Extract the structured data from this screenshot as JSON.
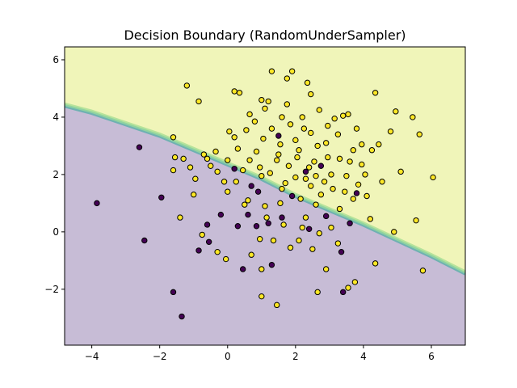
{
  "chart_data": {
    "type": "scatter",
    "title": "Decision Boundary (RandomUnderSampler)",
    "xlabel": "",
    "ylabel": "",
    "xlim": [
      -4.8,
      7.0
    ],
    "ylim": [
      -3.95,
      6.45
    ],
    "x_ticks": [
      -4,
      -2,
      0,
      2,
      4,
      6
    ],
    "x_tick_labels": [
      "−4",
      "−2",
      "0",
      "2",
      "4",
      "6"
    ],
    "y_ticks": [
      -2,
      0,
      2,
      4,
      6
    ],
    "y_tick_labels": [
      "−2",
      "0",
      "2",
      "4",
      "6"
    ],
    "grid": false,
    "legend": "none",
    "background_regions": {
      "class_0_color": "#c7bcd6",
      "class_1_color": "#f0f5b9",
      "boundary_band_colors": [
        "#6fb1b2",
        "#8fd3a0",
        "#b6e39b"
      ],
      "boundary": [
        [
          -4.8,
          4.4
        ],
        [
          -4.0,
          4.15
        ],
        [
          -3.0,
          3.75
        ],
        [
          -2.0,
          3.35
        ],
        [
          -1.0,
          2.85
        ],
        [
          0.0,
          2.35
        ],
        [
          1.0,
          1.85
        ],
        [
          2.0,
          1.25
        ],
        [
          3.0,
          0.75
        ],
        [
          4.0,
          0.25
        ],
        [
          5.0,
          -0.3
        ],
        [
          6.0,
          -0.85
        ],
        [
          7.0,
          -1.45
        ]
      ]
    },
    "series": [
      {
        "class": 0,
        "color": "#440154",
        "points": [
          [
            -3.85,
            1.0
          ],
          [
            -2.6,
            2.95
          ],
          [
            -2.45,
            -0.3
          ],
          [
            -1.95,
            1.2
          ],
          [
            -1.6,
            -2.1
          ],
          [
            -1.35,
            -2.95
          ],
          [
            -0.85,
            -0.65
          ],
          [
            -0.6,
            0.25
          ],
          [
            -0.55,
            -0.35
          ],
          [
            -0.2,
            0.6
          ],
          [
            0.2,
            2.2
          ],
          [
            0.3,
            0.2
          ],
          [
            0.45,
            -1.3
          ],
          [
            0.6,
            0.6
          ],
          [
            0.7,
            1.6
          ],
          [
            0.9,
            1.4
          ],
          [
            0.85,
            0.2
          ],
          [
            1.2,
            0.3
          ],
          [
            1.3,
            -1.15
          ],
          [
            1.5,
            3.35
          ],
          [
            1.6,
            0.5
          ],
          [
            1.9,
            1.25
          ],
          [
            2.3,
            2.1
          ],
          [
            2.4,
            0.1
          ],
          [
            2.75,
            2.3
          ],
          [
            2.9,
            0.55
          ],
          [
            3.4,
            -2.1
          ],
          [
            3.35,
            -0.7
          ],
          [
            3.6,
            0.3
          ],
          [
            3.8,
            1.35
          ]
        ]
      },
      {
        "class": 1,
        "color": "#fde725",
        "points": [
          [
            -1.2,
            5.1
          ],
          [
            -0.85,
            4.55
          ],
          [
            -1.6,
            3.3
          ],
          [
            -1.55,
            2.6
          ],
          [
            -1.6,
            2.15
          ],
          [
            -1.3,
            2.55
          ],
          [
            -1.1,
            2.25
          ],
          [
            -0.95,
            1.85
          ],
          [
            -0.7,
            2.7
          ],
          [
            -0.6,
            2.55
          ],
          [
            -0.35,
            2.8
          ],
          [
            -0.3,
            2.1
          ],
          [
            -0.1,
            1.75
          ],
          [
            0.0,
            1.4
          ],
          [
            0.05,
            3.5
          ],
          [
            0.2,
            3.3
          ],
          [
            0.3,
            2.9
          ],
          [
            0.35,
            4.85
          ],
          [
            0.55,
            3.55
          ],
          [
            0.65,
            2.5
          ],
          [
            0.8,
            3.85
          ],
          [
            0.85,
            2.8
          ],
          [
            1.0,
            1.95
          ],
          [
            1.05,
            3.25
          ],
          [
            1.1,
            4.3
          ],
          [
            1.2,
            4.55
          ],
          [
            1.3,
            3.6
          ],
          [
            1.45,
            2.5
          ],
          [
            1.6,
            4.0
          ],
          [
            1.75,
            4.45
          ],
          [
            1.85,
            3.75
          ],
          [
            2.0,
            3.2
          ],
          [
            2.05,
            2.6
          ],
          [
            2.2,
            4.0
          ],
          [
            2.3,
            1.85
          ],
          [
            2.45,
            3.45
          ],
          [
            2.55,
            2.45
          ],
          [
            2.7,
            4.25
          ],
          [
            2.75,
            1.3
          ],
          [
            2.9,
            3.1
          ],
          [
            3.05,
            2.0
          ],
          [
            3.15,
            3.95
          ],
          [
            3.3,
            2.55
          ],
          [
            3.45,
            1.4
          ],
          [
            3.55,
            4.1
          ],
          [
            3.7,
            2.85
          ],
          [
            3.85,
            1.65
          ],
          [
            4.05,
            2.0
          ],
          [
            4.25,
            2.85
          ],
          [
            4.35,
            4.85
          ],
          [
            4.55,
            1.75
          ],
          [
            4.8,
            3.5
          ],
          [
            4.95,
            4.2
          ],
          [
            5.1,
            2.1
          ],
          [
            5.45,
            4.0
          ],
          [
            5.55,
            0.4
          ],
          [
            5.65,
            3.4
          ],
          [
            6.05,
            1.9
          ],
          [
            5.75,
            -1.35
          ],
          [
            4.9,
            0.0
          ],
          [
            4.35,
            -1.1
          ],
          [
            3.75,
            -1.75
          ],
          [
            3.55,
            -1.95
          ],
          [
            2.9,
            -1.3
          ],
          [
            2.65,
            -2.1
          ],
          [
            2.5,
            -0.6
          ],
          [
            2.1,
            -0.3
          ],
          [
            1.45,
            -2.55
          ],
          [
            1.0,
            -2.25
          ],
          [
            1.0,
            -1.3
          ],
          [
            0.7,
            -0.8
          ],
          [
            -0.05,
            -0.95
          ],
          [
            -0.3,
            -0.7
          ],
          [
            -0.75,
            -0.1
          ],
          [
            -1.4,
            0.5
          ],
          [
            -1.0,
            1.3
          ],
          [
            0.5,
            0.95
          ],
          [
            0.95,
            -0.25
          ],
          [
            1.35,
            -0.3
          ],
          [
            1.85,
            -0.55
          ],
          [
            2.3,
            0.5
          ],
          [
            2.6,
            0.95
          ],
          [
            3.05,
            0.15
          ],
          [
            3.3,
            0.8
          ],
          [
            4.2,
            0.45
          ],
          [
            0.25,
            1.75
          ],
          [
            0.6,
            1.1
          ],
          [
            1.1,
            0.9
          ],
          [
            1.55,
            1.0
          ],
          [
            1.7,
            1.7
          ],
          [
            2.15,
            1.15
          ],
          [
            2.45,
            1.6
          ],
          [
            2.85,
            1.75
          ],
          [
            3.5,
            1.95
          ],
          [
            3.95,
            2.35
          ],
          [
            4.45,
            3.05
          ],
          [
            0.45,
            2.15
          ],
          [
            0.95,
            2.25
          ],
          [
            1.25,
            2.05
          ],
          [
            1.5,
            2.7
          ],
          [
            1.8,
            2.3
          ],
          [
            2.1,
            2.85
          ],
          [
            2.4,
            2.25
          ],
          [
            2.65,
            3.0
          ],
          [
            2.95,
            2.6
          ],
          [
            3.25,
            3.4
          ],
          [
            3.6,
            2.45
          ],
          [
            3.95,
            3.05
          ],
          [
            1.3,
            5.6
          ],
          [
            1.9,
            5.6
          ],
          [
            2.35,
            5.2
          ],
          [
            2.45,
            4.8
          ],
          [
            1.75,
            5.35
          ],
          [
            1.0,
            4.6
          ],
          [
            0.2,
            4.9
          ],
          [
            0.65,
            4.1
          ],
          [
            1.55,
            3.05
          ],
          [
            2.25,
            3.6
          ],
          [
            2.95,
            3.7
          ],
          [
            3.4,
            4.05
          ],
          [
            3.8,
            3.6
          ],
          [
            0.0,
            2.5
          ],
          [
            -0.5,
            2.3
          ],
          [
            1.6,
            1.5
          ],
          [
            2.0,
            1.9
          ],
          [
            2.6,
            1.95
          ],
          [
            3.1,
            1.5
          ],
          [
            3.7,
            1.15
          ],
          [
            4.1,
            1.25
          ],
          [
            1.15,
            0.5
          ],
          [
            1.65,
            0.25
          ],
          [
            2.2,
            0.15
          ],
          [
            2.7,
            -0.05
          ],
          [
            3.25,
            -0.4
          ]
        ]
      }
    ]
  }
}
